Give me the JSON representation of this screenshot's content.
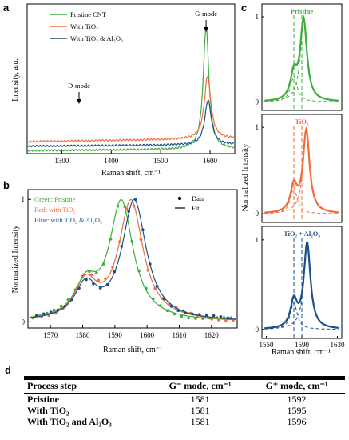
{
  "colors": {
    "pristine": "#3cae3c",
    "tio2": "#f26b3a",
    "tio2_al2o3": "#1a4f8a",
    "table_rule": "#000000"
  },
  "panels": {
    "a": {
      "letter": "a"
    },
    "b": {
      "letter": "b"
    },
    "c": {
      "letter": "c"
    },
    "d": {
      "letter": "d"
    }
  },
  "chart_data": [
    {
      "panel": "a",
      "type": "line",
      "xlabel": "Raman shift, cm⁻¹",
      "ylabel": "Intensity, a.u.",
      "xlim": [
        1230,
        1650
      ],
      "ylim": [
        0,
        1
      ],
      "xticks": [
        "1300",
        "1400",
        "1500",
        "1600"
      ],
      "xtick_values": [
        1300,
        1400,
        1500,
        1600
      ],
      "legend": [
        "Pristine CNT",
        "With TiO₂",
        "With TiO₂ & Al₂O₃"
      ],
      "legend_position": "top-left",
      "annotations": [
        {
          "text": "G-mode",
          "x": 1592,
          "arrow": true
        },
        {
          "text": "D-mode",
          "x": 1335,
          "arrow": true
        }
      ],
      "series": [
        {
          "name": "Pristine CNT",
          "color_key": "pristine",
          "baseline": 0.02,
          "peak_x": 1592,
          "peak_y": 0.82,
          "width": 7
        },
        {
          "name": "With TiO₂",
          "color_key": "tio2",
          "baseline": 0.08,
          "peak_x": 1595,
          "peak_y": 0.42,
          "width": 8
        },
        {
          "name": "With TiO₂ & Al₂O₃",
          "color_key": "tio2_al2o3",
          "baseline": 0.05,
          "peak_x": 1596,
          "peak_y": 0.3,
          "width": 8
        }
      ]
    },
    {
      "panel": "b",
      "type": "scatter",
      "xlabel": "Raman shift, cm⁻¹",
      "ylabel": "Normalized Intensity",
      "xlim": [
        1563,
        1628
      ],
      "ylim": [
        -0.05,
        1.08
      ],
      "xticks": [
        "1570",
        "1580",
        "1590",
        "1600",
        "1610",
        "1620"
      ],
      "xtick_values": [
        1570,
        1580,
        1590,
        1600,
        1610,
        1620
      ],
      "yticks": [
        "0",
        "1"
      ],
      "ytick_values": [
        0,
        1
      ],
      "legend_text": [
        "Green: Pristine",
        "Red: with TiO₂",
        "Blue: with TiO₂ & Al₂O₃"
      ],
      "marker_legend": [
        "Data",
        "Fit"
      ],
      "series": [
        {
          "name": "Green: Pristine",
          "color_key": "pristine",
          "g_minus": 1581,
          "g_plus": 1592,
          "a_minus": 0.28,
          "w_minus": 4.2,
          "w_plus": 4.5
        },
        {
          "name": "Red: with TiO₂",
          "color_key": "tio2",
          "g_minus": 1581,
          "g_plus": 1595,
          "a_minus": 0.3,
          "w_minus": 4.2,
          "w_plus": 4.6
        },
        {
          "name": "Blue: with TiO₂ & Al₂O₃",
          "color_key": "tio2_al2o3",
          "g_minus": 1581,
          "g_plus": 1596,
          "a_minus": 0.28,
          "w_minus": 4.2,
          "w_plus": 4.6
        }
      ]
    },
    {
      "panel": "c",
      "type": "line",
      "xlabel": "Raman shift, cm⁻¹",
      "ylabel": "Normalized Intensity",
      "xlim": [
        1545,
        1635
      ],
      "ylim": [
        -0.1,
        1.15
      ],
      "xticks": [
        "1550",
        "1590",
        "1630"
      ],
      "xtick_values": [
        1550,
        1590,
        1630
      ],
      "yticks": [
        "0",
        "1"
      ],
      "ytick_values": [
        0,
        1
      ],
      "vertical_lines": [
        1581,
        1590
      ],
      "subplots": [
        {
          "title": "Pristine",
          "color_key": "pristine",
          "g_minus": 1581,
          "g_plus": 1592
        },
        {
          "title": "TiO₂",
          "color_key": "tio2",
          "g_minus": 1581,
          "g_plus": 1595
        },
        {
          "title": "TiO₂ + Al₂O₃",
          "color_key": "tio2_al2o3",
          "g_minus": 1581,
          "g_plus": 1596
        }
      ]
    }
  ],
  "table": {
    "headers": [
      "Process step",
      "G⁻ mode, cm⁻¹",
      "G⁺ mode, cm⁻¹"
    ],
    "rows": [
      [
        "Pristine",
        "1581",
        "1592"
      ],
      [
        "With TiO₂",
        "1581",
        "1595"
      ],
      [
        "With TiO₂ and Al₂O₃",
        "1581",
        "1596"
      ]
    ]
  }
}
